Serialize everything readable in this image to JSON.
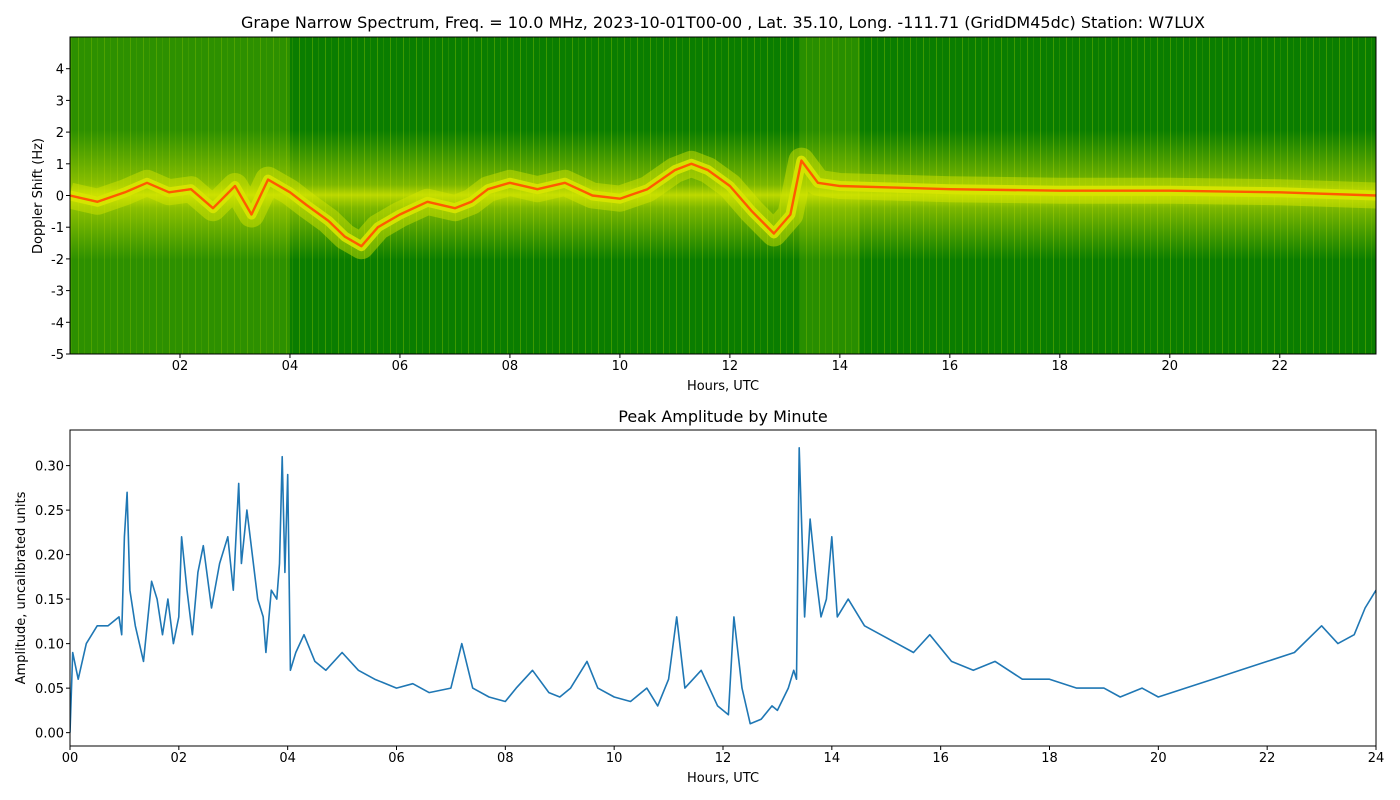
{
  "chart_data": [
    {
      "type": "heatmap",
      "title": "Grape Narrow Spectrum, Freq. = 10.0 MHz, 2023-10-01T00-00 , Lat.  35.10, Long. -111.71 (GridDM45dc) Station: W7LUX",
      "xlabel": "Hours, UTC",
      "ylabel": "Doppler Shift (Hz)",
      "xlim": [
        0,
        23.75
      ],
      "ylim": [
        -5,
        5
      ],
      "x_ticks": [
        2,
        4,
        6,
        8,
        10,
        12,
        14,
        16,
        18,
        20,
        22
      ],
      "x_tick_labels": [
        "02",
        "04",
        "06",
        "08",
        "10",
        "12",
        "14",
        "16",
        "18",
        "20",
        "22"
      ],
      "y_ticks": [
        -5,
        -4,
        -3,
        -2,
        -1,
        0,
        1,
        2,
        3,
        4
      ],
      "y_tick_labels": [
        "-5",
        "-4",
        "-3",
        "-2",
        "-1",
        "0",
        "1",
        "2",
        "3",
        "4"
      ],
      "colors": {
        "background": "#0a7d00",
        "noise": "#d8e600",
        "peak": "#ff5a00"
      },
      "doppler_trace": [
        [
          0,
          0
        ],
        [
          0.5,
          -0.2
        ],
        [
          1,
          0.1
        ],
        [
          1.4,
          0.4
        ],
        [
          1.8,
          0.1
        ],
        [
          2.2,
          0.2
        ],
        [
          2.6,
          -0.4
        ],
        [
          3,
          0.3
        ],
        [
          3.3,
          -0.6
        ],
        [
          3.6,
          0.5
        ],
        [
          4,
          0.1
        ],
        [
          4.3,
          -0.3
        ],
        [
          4.7,
          -0.8
        ],
        [
          5,
          -1.3
        ],
        [
          5.3,
          -1.6
        ],
        [
          5.6,
          -1.0
        ],
        [
          6,
          -0.6
        ],
        [
          6.5,
          -0.2
        ],
        [
          7,
          -0.4
        ],
        [
          7.3,
          -0.2
        ],
        [
          7.6,
          0.2
        ],
        [
          8,
          0.4
        ],
        [
          8.5,
          0.2
        ],
        [
          9,
          0.4
        ],
        [
          9.5,
          0.0
        ],
        [
          10,
          -0.1
        ],
        [
          10.5,
          0.2
        ],
        [
          11,
          0.8
        ],
        [
          11.3,
          1.0
        ],
        [
          11.6,
          0.8
        ],
        [
          12,
          0.3
        ],
        [
          12.4,
          -0.5
        ],
        [
          12.8,
          -1.2
        ],
        [
          13.1,
          -0.6
        ],
        [
          13.3,
          1.1
        ],
        [
          13.6,
          0.4
        ],
        [
          14,
          0.3
        ],
        [
          15,
          0.25
        ],
        [
          16,
          0.2
        ],
        [
          18,
          0.15
        ],
        [
          20,
          0.15
        ],
        [
          22,
          0.1
        ],
        [
          23.75,
          0.0
        ]
      ]
    },
    {
      "type": "line",
      "title": "Peak Amplitude by Minute",
      "xlabel": "Hours, UTC",
      "ylabel": "Amplitude, uncalibrated units",
      "xlim": [
        0,
        24
      ],
      "ylim": [
        -0.015,
        0.34
      ],
      "x_ticks": [
        0,
        2,
        4,
        6,
        8,
        10,
        12,
        14,
        16,
        18,
        20,
        22,
        24
      ],
      "x_tick_labels": [
        "00",
        "02",
        "04",
        "06",
        "08",
        "10",
        "12",
        "14",
        "16",
        "18",
        "20",
        "22",
        "24"
      ],
      "y_ticks": [
        0.0,
        0.05,
        0.1,
        0.15,
        0.2,
        0.25,
        0.3
      ],
      "y_tick_labels": [
        "0.00",
        "0.05",
        "0.10",
        "0.15",
        "0.20",
        "0.25",
        "0.30"
      ],
      "color": "#1f77b4",
      "x": [
        0,
        0.05,
        0.15,
        0.3,
        0.5,
        0.7,
        0.9,
        0.95,
        1.0,
        1.05,
        1.1,
        1.2,
        1.35,
        1.5,
        1.6,
        1.7,
        1.8,
        1.9,
        2.0,
        2.05,
        2.15,
        2.25,
        2.35,
        2.45,
        2.6,
        2.75,
        2.9,
        3.0,
        3.1,
        3.15,
        3.25,
        3.35,
        3.45,
        3.55,
        3.6,
        3.7,
        3.8,
        3.85,
        3.9,
        3.95,
        4.0,
        4.05,
        4.15,
        4.3,
        4.5,
        4.7,
        5.0,
        5.3,
        5.6,
        6.0,
        6.3,
        6.6,
        7.0,
        7.2,
        7.4,
        7.7,
        8.0,
        8.2,
        8.5,
        8.8,
        9.0,
        9.2,
        9.5,
        9.7,
        10.0,
        10.3,
        10.6,
        10.8,
        11.0,
        11.15,
        11.3,
        11.6,
        11.9,
        12.1,
        12.2,
        12.35,
        12.5,
        12.7,
        12.9,
        13.0,
        13.2,
        13.3,
        13.35,
        13.4,
        13.5,
        13.6,
        13.7,
        13.8,
        13.9,
        14.0,
        14.1,
        14.3,
        14.6,
        14.9,
        15.2,
        15.5,
        15.8,
        16.2,
        16.6,
        17.0,
        17.5,
        18.0,
        18.5,
        19.0,
        19.3,
        19.7,
        20.0,
        20.5,
        21.0,
        21.5,
        22.0,
        22.5,
        23.0,
        23.3,
        23.6,
        23.8,
        24.0
      ],
      "y": [
        0.0,
        0.09,
        0.06,
        0.1,
        0.12,
        0.12,
        0.13,
        0.11,
        0.22,
        0.27,
        0.16,
        0.12,
        0.08,
        0.17,
        0.15,
        0.11,
        0.15,
        0.1,
        0.13,
        0.22,
        0.16,
        0.11,
        0.18,
        0.21,
        0.14,
        0.19,
        0.22,
        0.16,
        0.28,
        0.19,
        0.25,
        0.2,
        0.15,
        0.13,
        0.09,
        0.16,
        0.15,
        0.19,
        0.31,
        0.18,
        0.29,
        0.07,
        0.09,
        0.11,
        0.08,
        0.07,
        0.09,
        0.07,
        0.06,
        0.05,
        0.055,
        0.045,
        0.05,
        0.1,
        0.05,
        0.04,
        0.035,
        0.05,
        0.07,
        0.045,
        0.04,
        0.05,
        0.08,
        0.05,
        0.04,
        0.035,
        0.05,
        0.03,
        0.06,
        0.13,
        0.05,
        0.07,
        0.03,
        0.02,
        0.13,
        0.05,
        0.01,
        0.015,
        0.03,
        0.025,
        0.05,
        0.07,
        0.06,
        0.32,
        0.13,
        0.24,
        0.18,
        0.13,
        0.15,
        0.22,
        0.13,
        0.15,
        0.12,
        0.11,
        0.1,
        0.09,
        0.11,
        0.08,
        0.07,
        0.08,
        0.06,
        0.06,
        0.05,
        0.05,
        0.04,
        0.05,
        0.04,
        0.05,
        0.06,
        0.07,
        0.08,
        0.09,
        0.12,
        0.1,
        0.11,
        0.14,
        0.16
      ]
    }
  ]
}
